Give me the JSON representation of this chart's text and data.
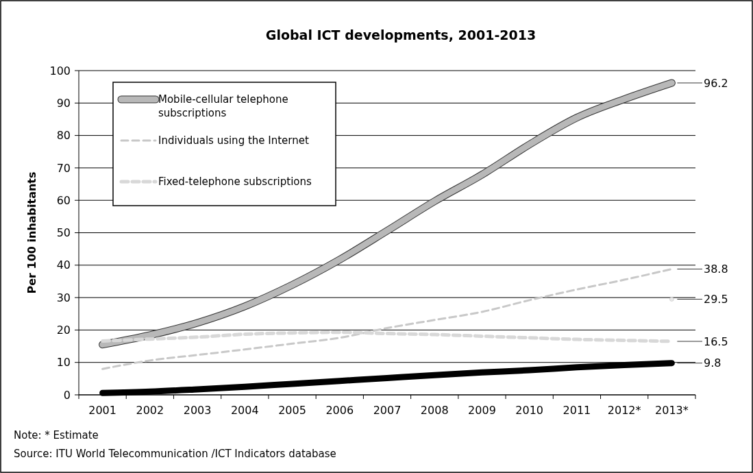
{
  "chart_data": {
    "type": "line",
    "title": "Global ICT developments, 2001-2013",
    "ylabel": "Per 100 inhabitants",
    "categories": [
      "2001",
      "2002",
      "2003",
      "2004",
      "2005",
      "2006",
      "2007",
      "2008",
      "2009",
      "2010",
      "2011",
      "2012*",
      "2013*"
    ],
    "ylim": [
      0,
      100
    ],
    "yticks": [
      0,
      10,
      20,
      30,
      40,
      50,
      60,
      70,
      80,
      90,
      100
    ],
    "grid": "y",
    "legend": "top left",
    "series": [
      {
        "name": "Mobile-cellular telephone subscriptions",
        "color": "#b8b8b8",
        "line_style": "solid",
        "values": [
          15.5,
          18.4,
          22.2,
          27.3,
          33.9,
          41.7,
          50.6,
          59.7,
          67.9,
          77.2,
          85.5,
          91.2,
          96.2
        ],
        "value_labels": [
          null,
          null,
          null,
          null,
          null,
          null,
          null,
          null,
          null,
          null,
          null,
          null,
          "96.2"
        ]
      },
      {
        "name": "Individuals using the Internet",
        "color": "#c8c8c8",
        "line_style": "dashed",
        "values": [
          8.0,
          10.6,
          12.3,
          14.0,
          15.8,
          17.6,
          20.6,
          23.1,
          25.6,
          29.2,
          32.5,
          35.5,
          38.8
        ],
        "value_labels": [
          null,
          null,
          null,
          null,
          null,
          null,
          null,
          null,
          null,
          null,
          null,
          null,
          "38.8"
        ]
      },
      {
        "type": "scatter",
        "color": "#e8e8e8",
        "values": [
          null,
          null,
          null,
          null,
          null,
          null,
          null,
          null,
          null,
          null,
          null,
          null,
          29.5
        ],
        "value_labels": [
          null,
          null,
          null,
          null,
          null,
          null,
          null,
          null,
          null,
          null,
          null,
          null,
          "29.5"
        ]
      },
      {
        "name": "Fixed-telephone subscriptions",
        "color": "#d8d8d8",
        "line_style": "dashed",
        "values": [
          16.6,
          17.2,
          17.8,
          18.7,
          19.1,
          19.3,
          18.9,
          18.6,
          18.1,
          17.6,
          17.1,
          16.8,
          16.5
        ],
        "value_labels": [
          null,
          null,
          null,
          null,
          null,
          null,
          null,
          null,
          null,
          null,
          null,
          null,
          "16.5"
        ]
      },
      {
        "color": "#000000",
        "line_style": "solid",
        "values": [
          0.6,
          1.0,
          1.7,
          2.5,
          3.4,
          4.3,
          5.2,
          6.1,
          6.9,
          7.6,
          8.5,
          9.2,
          9.8
        ],
        "value_labels": [
          null,
          null,
          null,
          null,
          null,
          null,
          null,
          null,
          null,
          null,
          null,
          null,
          "9.8"
        ]
      }
    ],
    "annotations": [
      "Note: * Estimate",
      "Source:  ITU World Telecommunication /ICT Indicators database"
    ]
  }
}
